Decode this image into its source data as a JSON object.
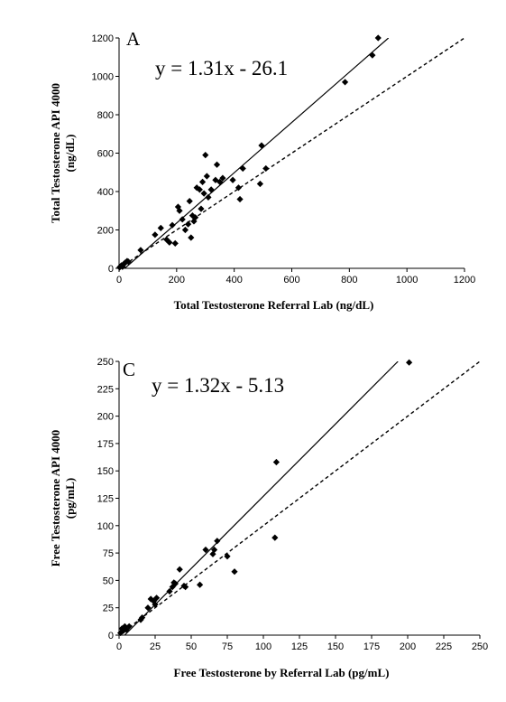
{
  "chart_data": [
    {
      "type": "scatter",
      "panel_label": "A",
      "equation": "y = 1.31x - 26.1",
      "xlabel": "Total Testosterone Referral Lab (ng/dL)",
      "ylabel_line1": "Total Testosterone  API 4000",
      "ylabel_line2": "(ng/dL)",
      "xlim": [
        0,
        1200
      ],
      "ylim": [
        0,
        1200
      ],
      "xticks": [
        "0",
        "200",
        "400",
        "600",
        "800",
        "1000",
        "1200"
      ],
      "yticks": [
        "0",
        "200",
        "400",
        "600",
        "800",
        "1000",
        "1200"
      ],
      "x_tick_values": [
        0,
        200,
        400,
        600,
        800,
        1000,
        1200
      ],
      "y_tick_values": [
        0,
        200,
        400,
        600,
        800,
        1000,
        1200
      ],
      "regression": {
        "slope": 1.31,
        "intercept": -26.1
      },
      "identity_line": true,
      "grid": false,
      "points": [
        [
          2,
          5
        ],
        [
          5,
          10
        ],
        [
          8,
          15
        ],
        [
          12,
          8
        ],
        [
          15,
          20
        ],
        [
          18,
          25
        ],
        [
          22,
          30
        ],
        [
          28,
          38
        ],
        [
          32,
          35
        ],
        [
          75,
          95
        ],
        [
          125,
          175
        ],
        [
          145,
          210
        ],
        [
          165,
          150
        ],
        [
          175,
          135
        ],
        [
          185,
          225
        ],
        [
          195,
          130
        ],
        [
          205,
          320
        ],
        [
          210,
          300
        ],
        [
          220,
          255
        ],
        [
          230,
          200
        ],
        [
          240,
          230
        ],
        [
          245,
          350
        ],
        [
          250,
          160
        ],
        [
          255,
          275
        ],
        [
          260,
          245
        ],
        [
          265,
          265
        ],
        [
          270,
          420
        ],
        [
          280,
          410
        ],
        [
          285,
          310
        ],
        [
          290,
          450
        ],
        [
          295,
          390
        ],
        [
          300,
          590
        ],
        [
          305,
          480
        ],
        [
          310,
          370
        ],
        [
          320,
          410
        ],
        [
          335,
          460
        ],
        [
          340,
          540
        ],
        [
          350,
          450
        ],
        [
          360,
          470
        ],
        [
          395,
          460
        ],
        [
          415,
          420
        ],
        [
          420,
          360
        ],
        [
          430,
          520
        ],
        [
          490,
          440
        ],
        [
          495,
          640
        ],
        [
          510,
          520
        ],
        [
          785,
          970
        ],
        [
          880,
          1110
        ],
        [
          900,
          1200
        ]
      ]
    },
    {
      "type": "scatter",
      "panel_label": "C",
      "equation": "y = 1.32x - 5.13",
      "xlabel": "Free Testosterone by Referral Lab (pg/mL)",
      "ylabel_line1": "Free Testosterone  API 4000",
      "ylabel_line2": "(pg/mL)",
      "xlim": [
        0,
        250
      ],
      "ylim": [
        0,
        250
      ],
      "xticks": [
        "0",
        "25",
        "50",
        "75",
        "100",
        "125",
        "150",
        "175",
        "200",
        "225",
        "250"
      ],
      "yticks": [
        "0",
        "25",
        "50",
        "75",
        "100",
        "125",
        "150",
        "175",
        "200",
        "225",
        "250"
      ],
      "x_tick_values": [
        0,
        25,
        50,
        75,
        100,
        125,
        150,
        175,
        200,
        225,
        250
      ],
      "y_tick_values": [
        0,
        25,
        50,
        75,
        100,
        125,
        150,
        175,
        200,
        225,
        250
      ],
      "regression": {
        "slope": 1.32,
        "intercept": -5.13
      },
      "identity_line": true,
      "grid": false,
      "points": [
        [
          1,
          2
        ],
        [
          2,
          6
        ],
        [
          3,
          4
        ],
        [
          4,
          8
        ],
        [
          5,
          5
        ],
        [
          7,
          8
        ],
        [
          15,
          14
        ],
        [
          16,
          16
        ],
        [
          20,
          25
        ],
        [
          22,
          33
        ],
        [
          24,
          31
        ],
        [
          25,
          28
        ],
        [
          26,
          34
        ],
        [
          35,
          40
        ],
        [
          37,
          44
        ],
        [
          38,
          48
        ],
        [
          39,
          47
        ],
        [
          42,
          60
        ],
        [
          45,
          45
        ],
        [
          46,
          44
        ],
        [
          56,
          46
        ],
        [
          60,
          78
        ],
        [
          65,
          74
        ],
        [
          66,
          78
        ],
        [
          68,
          86
        ],
        [
          75,
          72
        ],
        [
          80,
          58
        ],
        [
          108,
          89
        ],
        [
          109,
          158
        ],
        [
          201,
          249
        ]
      ]
    }
  ]
}
